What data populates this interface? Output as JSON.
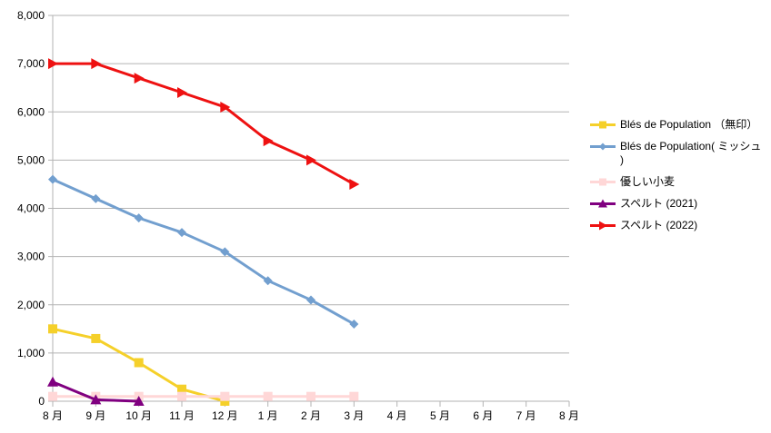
{
  "chart_data": {
    "type": "line",
    "categories": [
      "8 月",
      "9 月",
      "10 月",
      "11 月",
      "12 月",
      "1 月",
      "2 月",
      "3 月",
      "4 月",
      "5 月",
      "6 月",
      "7 月",
      "8 月"
    ],
    "ylim": [
      0,
      8000
    ],
    "yticks": [
      0,
      1000,
      2000,
      3000,
      4000,
      5000,
      6000,
      7000,
      8000
    ],
    "ytick_labels": [
      "0",
      "1,000",
      "2,000",
      "3,000",
      "4,000",
      "5,000",
      "6,000",
      "7,000",
      "8,000"
    ],
    "grid": true,
    "legend_position": "right",
    "series": [
      {
        "name": "Blés de Population （無印）",
        "color": "#f5d02a",
        "marker": "square",
        "values": [
          1500,
          1300,
          800,
          250,
          0,
          null,
          null,
          null,
          null,
          null,
          null,
          null,
          null
        ]
      },
      {
        "name": "Blés de Population( ミッシュ )",
        "color": "#729fcf",
        "marker": "diamond",
        "values": [
          4600,
          4200,
          3800,
          3500,
          3100,
          2500,
          2100,
          1600,
          null,
          null,
          null,
          null,
          null
        ]
      },
      {
        "name": "優しい小麦",
        "color": "#ffd7d7",
        "marker": "square",
        "values": [
          100,
          100,
          100,
          100,
          100,
          100,
          100,
          100,
          null,
          null,
          null,
          null,
          null
        ]
      },
      {
        "name": "スペルト (2021)",
        "color": "#800080",
        "marker": "triangle-up",
        "values": [
          400,
          30,
          0,
          null,
          null,
          null,
          null,
          null,
          null,
          null,
          null,
          null,
          null
        ]
      },
      {
        "name": "スペルト (2022)",
        "color": "#ee1111",
        "marker": "triangle-right",
        "values": [
          7000,
          7000,
          6700,
          6400,
          6100,
          5400,
          5000,
          4500,
          null,
          null,
          null,
          null,
          null
        ]
      }
    ]
  }
}
